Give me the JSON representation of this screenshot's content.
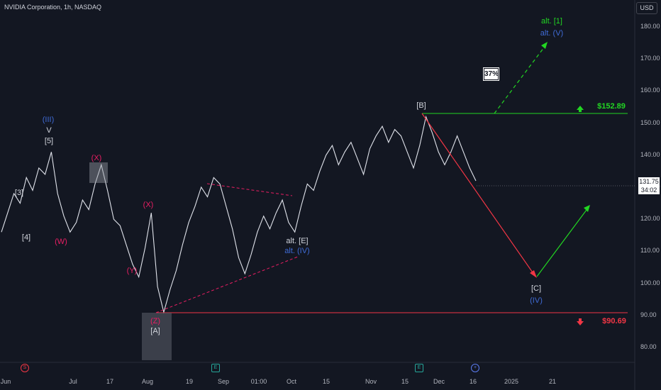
{
  "header": {
    "title": "NVIDIA Corporation, 1h, NASDAQ",
    "currency": "USD"
  },
  "chart_data": {
    "type": "line",
    "title": "NVIDIA Corporation, 1h, NASDAQ",
    "ylim": [
      75,
      190
    ],
    "y_ticks": [
      "180.00",
      "170.00",
      "160.00",
      "150.00",
      "140.00",
      "130.00",
      "120.00",
      "110.00",
      "100.00",
      "90.00",
      "80.00"
    ],
    "x_ticks": [
      "Jun",
      "Jul",
      "17",
      "Aug",
      "19",
      "Sep",
      "01:00",
      "Oct",
      "15",
      "Nov",
      "15",
      "Dec",
      "16",
      "2025",
      "21"
    ],
    "series": [
      {
        "values": [
          116,
          122,
          128,
          125,
          133,
          129,
          136,
          134,
          141,
          128,
          121,
          116,
          119,
          126,
          123,
          131,
          137,
          129,
          120,
          118,
          112,
          106,
          102,
          111,
          122,
          99,
          91,
          98,
          104,
          112,
          119,
          124,
          130,
          127,
          133,
          131,
          124,
          117,
          108,
          103,
          109,
          116,
          121,
          117,
          122,
          126,
          119,
          116,
          124,
          131,
          129,
          135,
          140,
          143,
          137,
          141,
          144,
          139,
          134,
          142,
          146,
          149,
          144,
          148,
          146,
          141,
          136,
          143,
          152,
          147,
          141,
          137,
          141,
          146,
          141,
          136,
          132
        ]
      }
    ],
    "current_price": "131.75",
    "countdown": "34:02",
    "levels": [
      {
        "label": "$152.89",
        "value": 152.89,
        "color": "#22d622"
      },
      {
        "label": "$90.69",
        "value": 90.69,
        "color": "#f23645"
      }
    ],
    "annotations": {
      "iii": "(III)",
      "v": "V",
      "five": "[5]",
      "three": "[3]",
      "four": "[4]",
      "w": "(W)",
      "x1": "(X)",
      "x2": "(X)",
      "y": "(Y)",
      "z": "(Z)",
      "a": "[A]",
      "alt_e": "alt. [E]",
      "alt_iv": "alt. (IV)",
      "b": "[B]",
      "c": "[C]",
      "iv": "(IV)",
      "alt_1": "alt. [1]",
      "alt_v": "alt. (V)",
      "pct": "37%"
    },
    "grid": false
  },
  "events": {
    "s": "S",
    "e1": "E",
    "e2": "E",
    "plus": "+"
  },
  "colors": {
    "green": "#22d622",
    "red": "#f23645",
    "pink": "#e91e63",
    "blue": "#3f6bd6",
    "gray": "#d1d4dc"
  }
}
